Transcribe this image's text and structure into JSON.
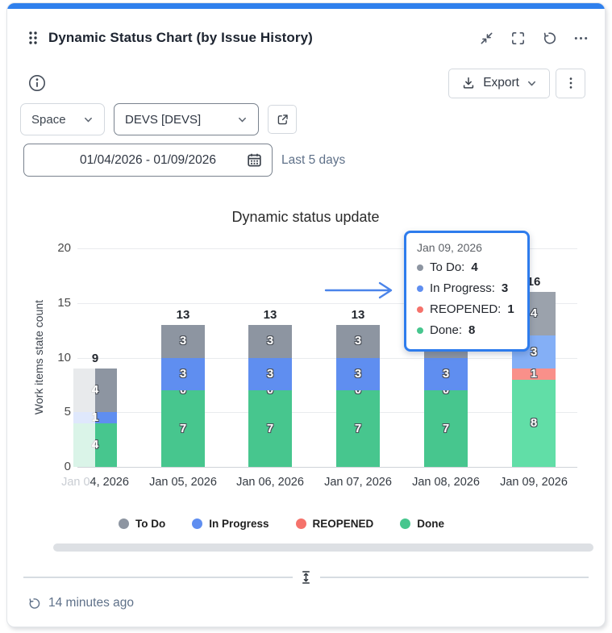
{
  "card": {
    "accent_color": "#2F80ED",
    "header": {
      "title": "Dynamic Status Chart (by Issue History)",
      "action_icons": [
        "drag-handle",
        "collapse",
        "fullscreen",
        "refresh",
        "more"
      ]
    },
    "toolbar": {
      "info_icon": "info",
      "export_label": "Export",
      "kebab_icon": "kebab-menu"
    },
    "filters": {
      "space_select": {
        "value": "Space"
      },
      "project_select": {
        "value": "DEVS [DEVS]"
      },
      "open_in_new_icon": "external-link",
      "date_range": {
        "value": "01/04/2026 - 01/09/2026",
        "icon": "calendar"
      },
      "date_hint": "Last 5 days"
    },
    "footer": {
      "refresh_icon": "history",
      "last_updated": "14 minutes ago"
    }
  },
  "chart_data": {
    "type": "bar",
    "stacked": true,
    "title": "Dynamic status update",
    "xlabel": "",
    "ylabel": "Work items state count",
    "ylim": [
      0,
      20
    ],
    "yticks": [
      0,
      5,
      10,
      15,
      20
    ],
    "grid": true,
    "legend_position": "bottom",
    "categories": [
      "Jan 04, 2026",
      "Jan 05, 2026",
      "Jan 06, 2026",
      "Jan 07, 2026",
      "Jan 08, 2026",
      "Jan 09, 2026"
    ],
    "series": [
      {
        "name": "To Do",
        "color": "#8D95A1",
        "hover_color": "#9BA2AC",
        "values": [
          4,
          3,
          3,
          3,
          3,
          4
        ]
      },
      {
        "name": "In Progress",
        "color": "#5F8EF0",
        "hover_color": "#84AFF6",
        "values": [
          1,
          3,
          3,
          3,
          3,
          3
        ]
      },
      {
        "name": "REOPENED",
        "color": "#F5726B",
        "hover_color": "#F9908A",
        "values": [
          0,
          0,
          0,
          0,
          0,
          1
        ]
      },
      {
        "name": "Done",
        "color": "#47C68E",
        "hover_color": "#61DEA7",
        "values": [
          4,
          7,
          7,
          7,
          7,
          8
        ]
      }
    ],
    "totals": [
      9,
      13,
      13,
      13,
      13,
      16
    ],
    "zero_labels_on_columns": [
      1,
      2,
      3,
      4
    ],
    "highlighted_column": 5,
    "clipped_column": 0,
    "clipped_label_faded_prefix": "Jan 0"
  },
  "tooltip": {
    "title": "Jan 09, 2026",
    "items": [
      {
        "label": "To Do",
        "value": "4",
        "color": "#8D95A1"
      },
      {
        "label": "In Progress",
        "value": "3",
        "color": "#5F8EF0"
      },
      {
        "label": "REOPENED",
        "value": "1",
        "color": "#F5726B"
      },
      {
        "label": "Done",
        "value": "8",
        "color": "#47C68E"
      }
    ]
  }
}
